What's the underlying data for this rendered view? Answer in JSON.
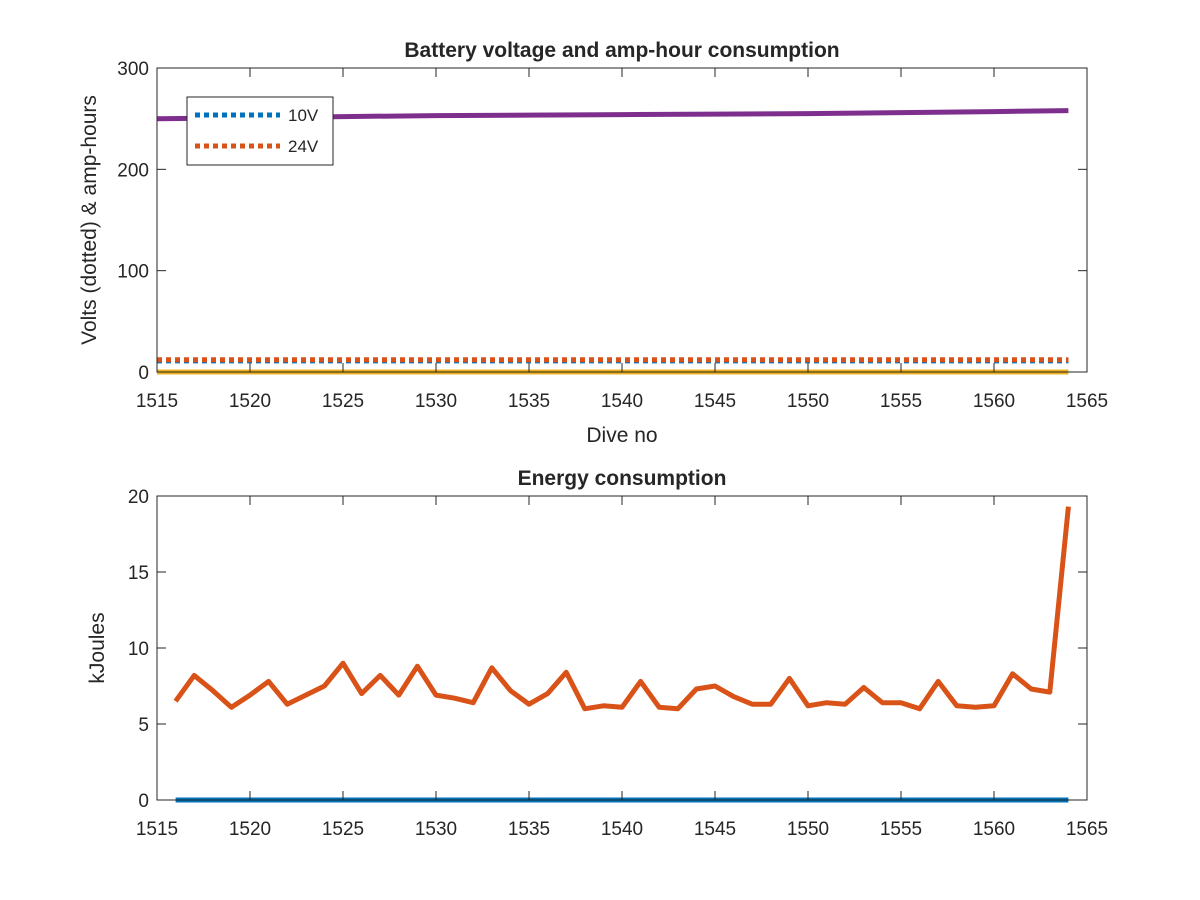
{
  "colors": {
    "series_blue": "#0072BD",
    "series_orange": "#D95319",
    "series_yellow": "#EDB120",
    "series_purple": "#7E2F8E",
    "axis": "#262626"
  },
  "chart_data": [
    {
      "type": "line",
      "title": "Battery voltage and amp-hour consumption",
      "xlabel": "Dive no",
      "ylabel": "Volts (dotted) & amp-hours",
      "xlim": [
        1515,
        1565
      ],
      "ylim": [
        0,
        300
      ],
      "xticks": [
        1515,
        1520,
        1525,
        1530,
        1535,
        1540,
        1545,
        1550,
        1555,
        1560,
        1565
      ],
      "yticks": [
        0,
        100,
        200,
        300
      ],
      "grid": false,
      "legend_position": "top-left",
      "series": [
        {
          "name": "10V",
          "style": "dotted",
          "color": "#0072BD",
          "x": [
            1515,
            1564
          ],
          "values": [
            11,
            11
          ]
        },
        {
          "name": "24V",
          "style": "dotted",
          "color": "#D95319",
          "x": [
            1515,
            1564
          ],
          "values": [
            12,
            12
          ]
        },
        {
          "style": "solid",
          "color": "#EDB120",
          "x": [
            1515,
            1564
          ],
          "values": [
            0,
            0
          ]
        },
        {
          "style": "solid",
          "color": "#7E2F8E",
          "x": [
            1515,
            1520,
            1525,
            1530,
            1535,
            1540,
            1545,
            1550,
            1555,
            1560,
            1564
          ],
          "values": [
            250,
            251,
            252,
            253,
            253.5,
            254,
            254.5,
            255,
            256,
            257,
            258
          ]
        }
      ]
    },
    {
      "type": "line",
      "title": "Energy consumption",
      "xlabel": "",
      "ylabel": "kJoules",
      "xlim": [
        1515,
        1565
      ],
      "ylim": [
        0,
        20
      ],
      "xticks": [
        1515,
        1520,
        1525,
        1530,
        1535,
        1540,
        1545,
        1550,
        1555,
        1560,
        1565
      ],
      "yticks": [
        0,
        5,
        10,
        15,
        20
      ],
      "grid": false,
      "series": [
        {
          "style": "solid",
          "color": "#0072BD",
          "x": [
            1516,
            1564
          ],
          "values": [
            0,
            0
          ]
        },
        {
          "style": "solid",
          "color": "#D95319",
          "x": [
            1516,
            1517,
            1518,
            1519,
            1520,
            1521,
            1522,
            1523,
            1524,
            1525,
            1526,
            1527,
            1528,
            1529,
            1530,
            1531,
            1532,
            1533,
            1534,
            1535,
            1536,
            1537,
            1538,
            1539,
            1540,
            1541,
            1542,
            1543,
            1544,
            1545,
            1546,
            1547,
            1548,
            1549,
            1550,
            1551,
            1552,
            1553,
            1554,
            1555,
            1556,
            1557,
            1558,
            1559,
            1560,
            1561,
            1562,
            1563,
            1564
          ],
          "values": [
            6.5,
            8.2,
            7.2,
            6.1,
            6.9,
            7.8,
            6.3,
            6.9,
            7.5,
            9.0,
            7.0,
            8.2,
            6.9,
            8.8,
            6.9,
            6.7,
            6.4,
            8.7,
            7.2,
            6.3,
            7.0,
            8.4,
            6.0,
            6.2,
            6.1,
            7.8,
            6.1,
            6.0,
            7.3,
            7.5,
            6.8,
            6.3,
            6.3,
            8.0,
            6.2,
            6.4,
            6.3,
            7.4,
            6.4,
            6.4,
            6.0,
            7.8,
            6.2,
            6.1,
            6.2,
            8.3,
            7.3,
            7.1,
            19.3
          ]
        }
      ]
    }
  ]
}
